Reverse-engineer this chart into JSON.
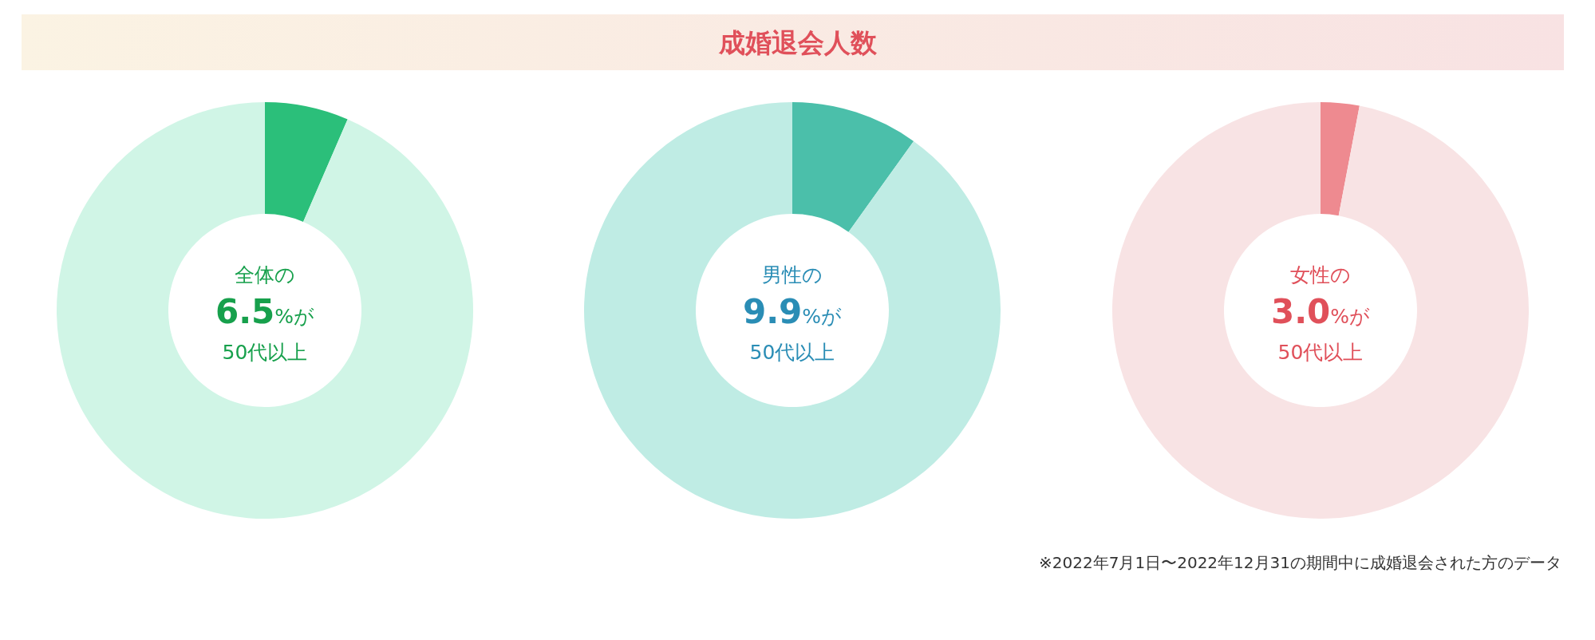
{
  "chart_data": [
    {
      "type": "donut",
      "categories": [
        null,
        null
      ],
      "values": [
        6.5,
        93.5
      ],
      "colors": [
        "#2bbf7a",
        "#d0f5e6"
      ],
      "annotations": [
        "全体の",
        "6.5%が",
        "50代以上"
      ]
    },
    {
      "type": "donut",
      "title": "成婚退会人数",
      "categories": [
        null,
        null
      ],
      "values": [
        9.9,
        90.1
      ],
      "colors": [
        "#4bbfaa",
        "#bfece4"
      ],
      "annotations": [
        "男性の",
        "9.9%が",
        "50代以上"
      ]
    },
    {
      "type": "donut",
      "categories": [
        null,
        null
      ],
      "values": [
        3.0,
        97.0
      ],
      "colors": [
        "#ee8a90",
        "#f8e3e4"
      ],
      "annotations": [
        "女性の",
        "3.0%が",
        "50代以上",
        "※2022年7月1日〜2022年12月31の期間中に成婚退会された方のデータ"
      ]
    }
  ]
}
